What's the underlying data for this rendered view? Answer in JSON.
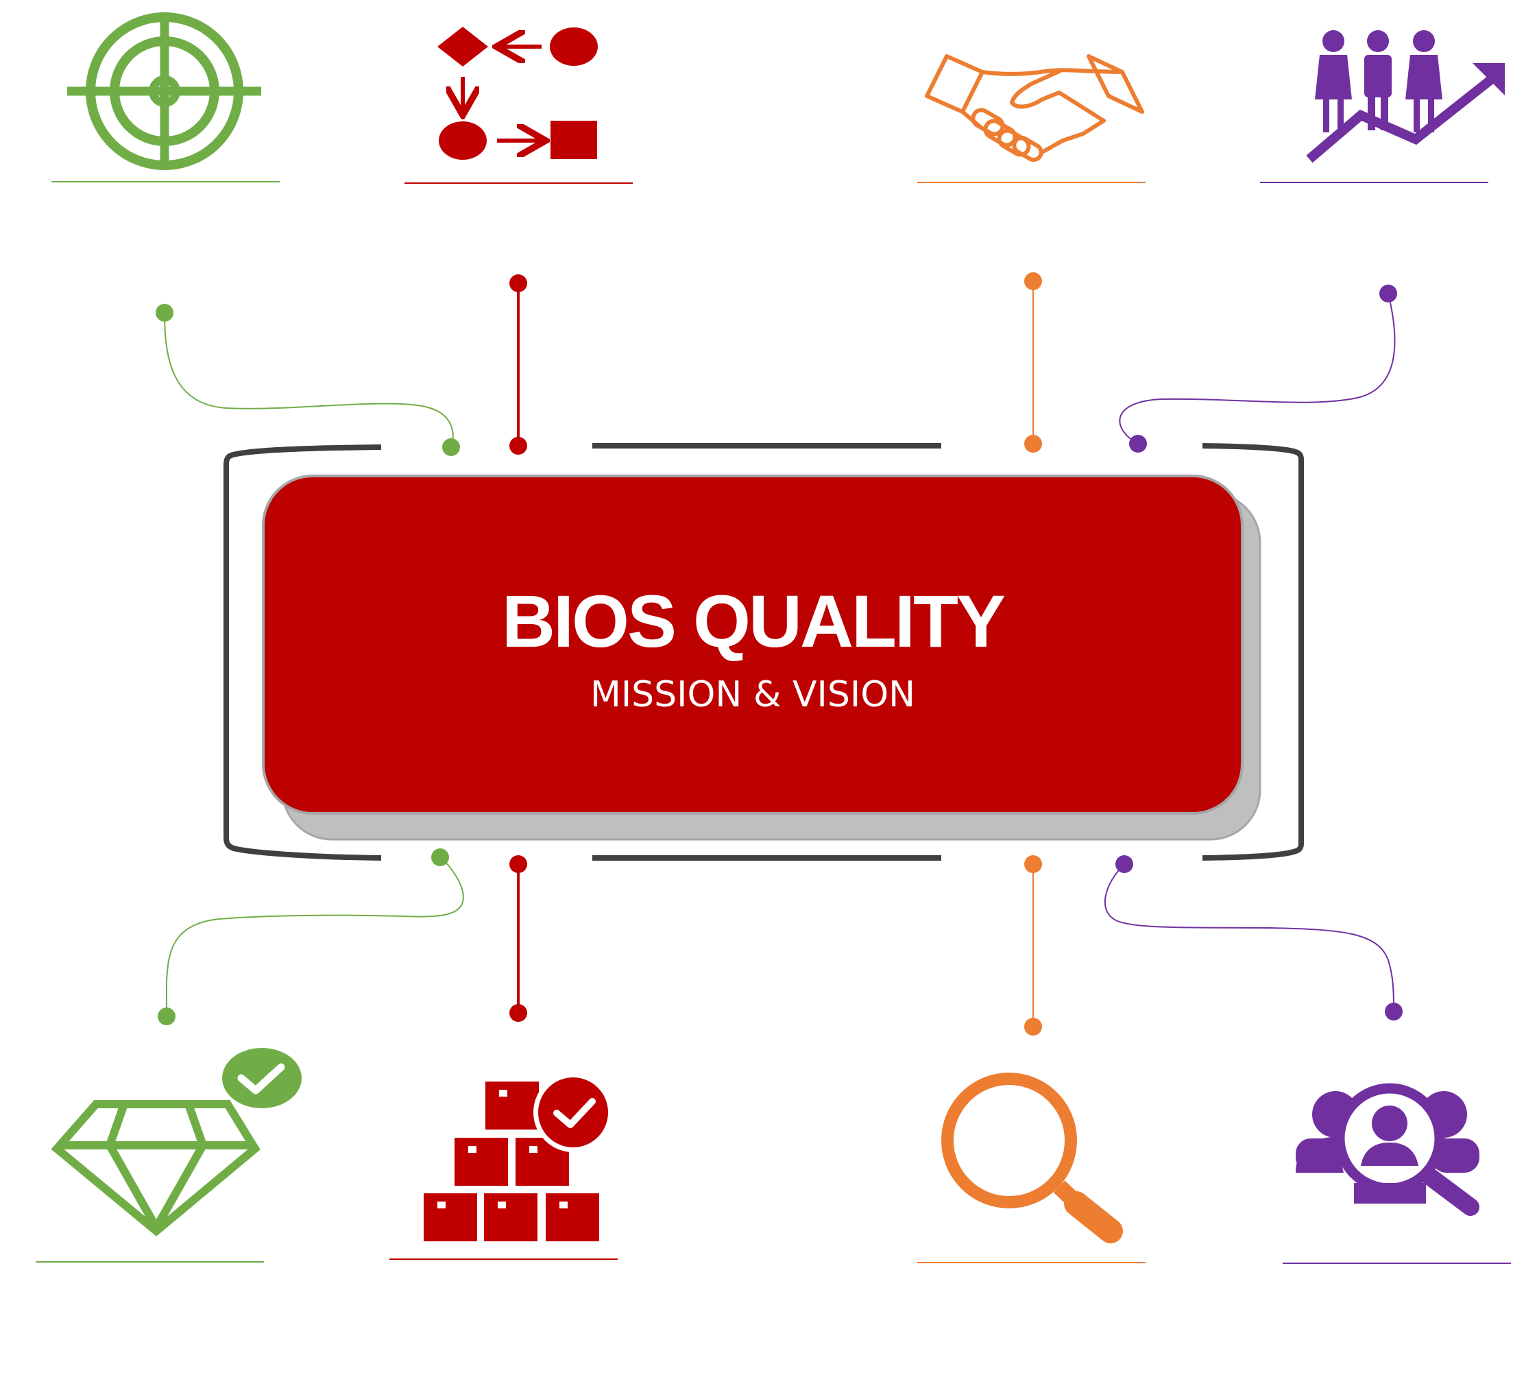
{
  "title": "BIOS QUALITY",
  "subtitle": "MISSION & VISION",
  "colors": {
    "green": "#70ad47",
    "red": "#c00000",
    "orange": "#ed7d31",
    "purple": "#7030a0",
    "card": "#bd0000",
    "card_shadow": "#bfbfbf",
    "bracket": "#404040"
  },
  "icons": {
    "top": [
      "target-icon",
      "process-flow-icon",
      "handshake-icon",
      "team-growth-icon"
    ],
    "bottom": [
      "diamond-check-icon",
      "boxes-check-icon",
      "magnifier-icon",
      "people-search-icon"
    ]
  }
}
